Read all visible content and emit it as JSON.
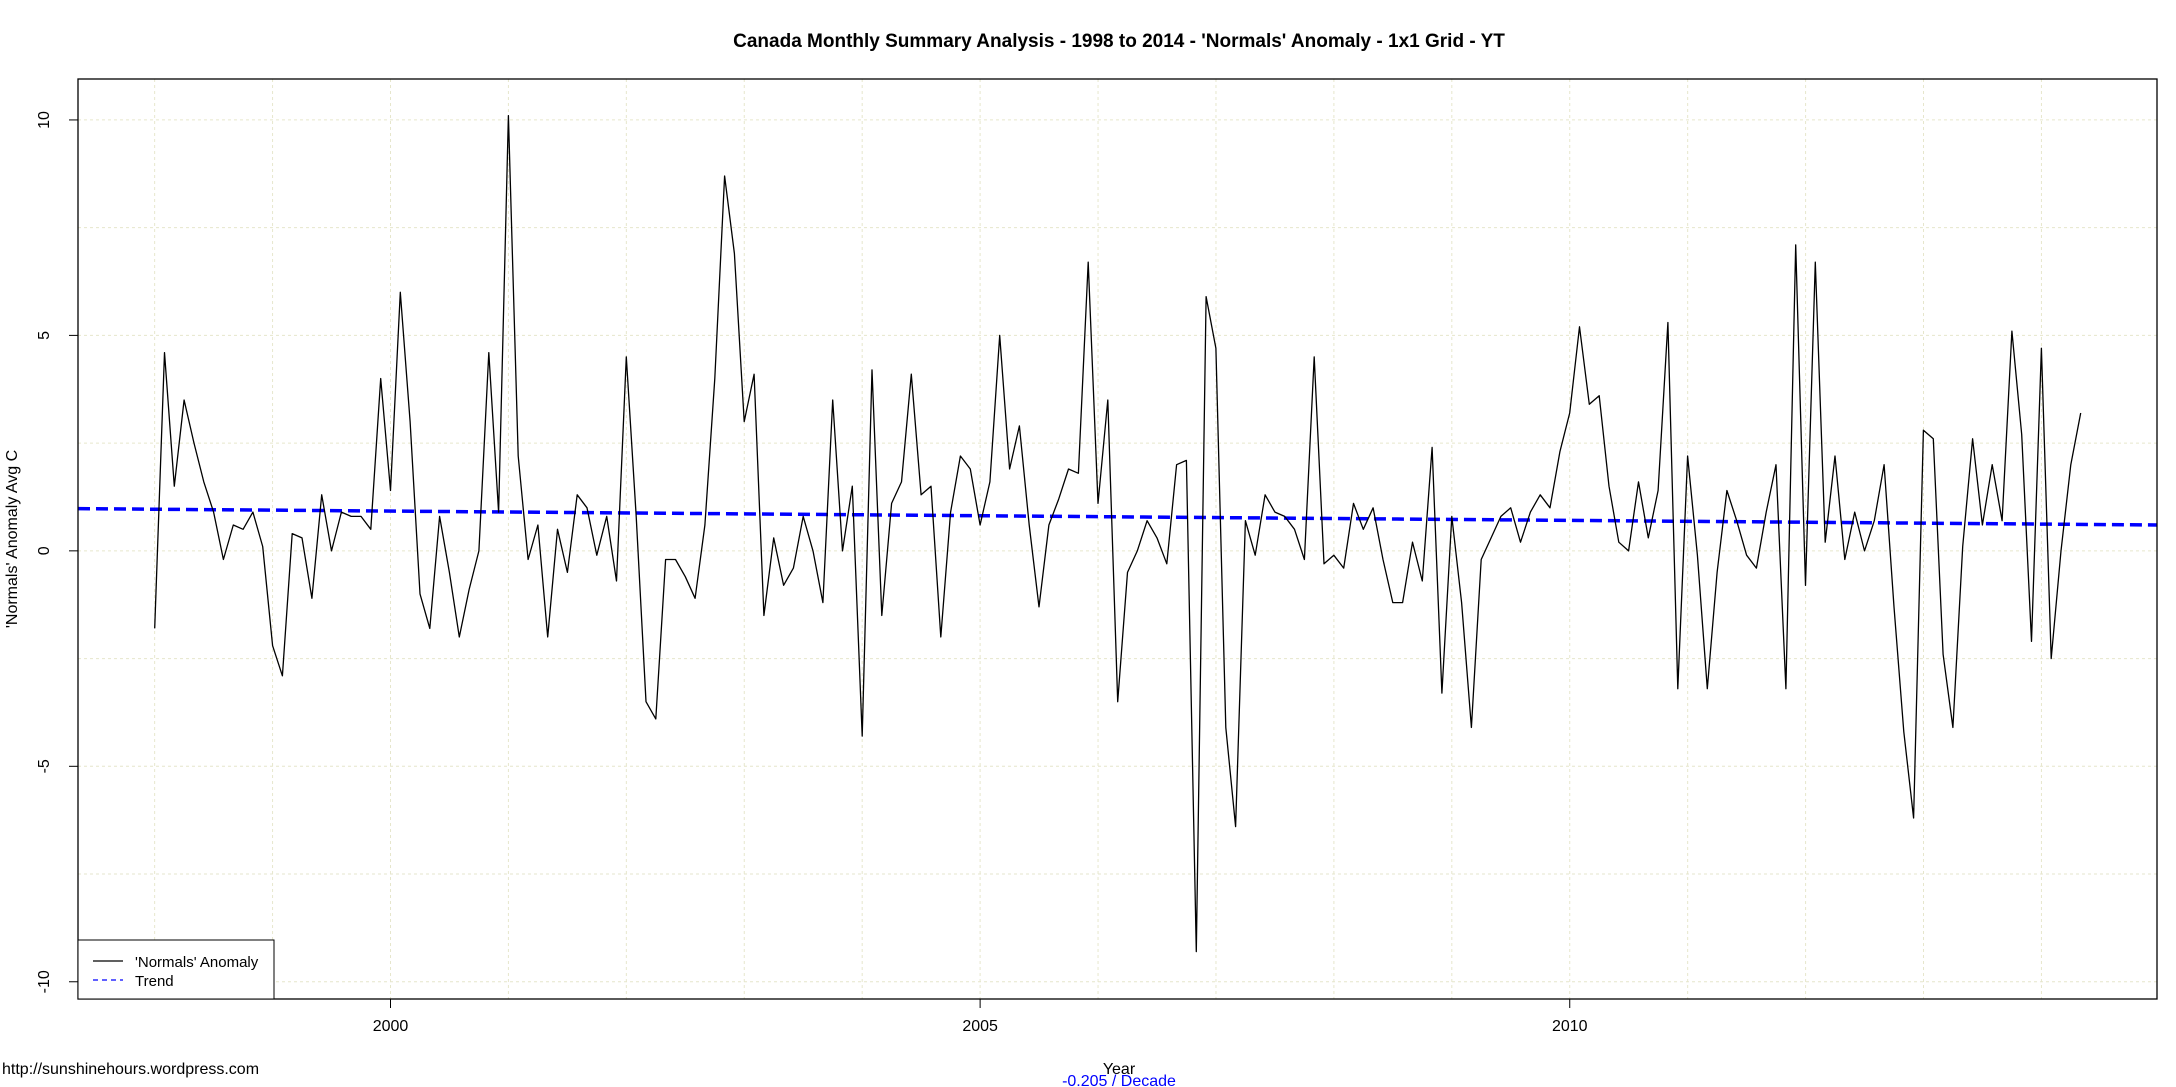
{
  "chart_data": {
    "type": "line",
    "title": "Canada Monthly Summary Analysis - 1998 to 2014 - 'Normals' Anomaly - 1x1 Grid - YT",
    "xlabel": "Year",
    "ylabel": "'Normals' Anomaly Avg C",
    "trend_label": "-0.205  / Decade",
    "source": "http://sunshinehours.wordpress.com",
    "xlim": [
      1997.35,
      2014.98
    ],
    "ylim": [
      -10.4,
      10.95
    ],
    "x_ticks": [
      2000,
      2005,
      2010
    ],
    "y_ticks": [
      10,
      5,
      0,
      -5,
      -10
    ],
    "x_grid": [
      1998,
      1999,
      2000,
      2001,
      2002,
      2003,
      2004,
      2005,
      2006,
      2007,
      2008,
      2009,
      2010,
      2011,
      2012,
      2013,
      2014
    ],
    "y_grid": [
      10,
      7.5,
      5,
      2.5,
      0,
      -2.5,
      -5,
      -7.5,
      -10
    ],
    "grid": true,
    "legend_position": "bottom-left",
    "legend": [
      {
        "label": "'Normals' Anomaly",
        "color": "#000000",
        "style": "solid"
      },
      {
        "label": "Trend",
        "color": "#0000ff",
        "style": "dashed"
      }
    ],
    "series": [
      {
        "name": "'Normals' Anomaly",
        "color": "#000000",
        "x_start": 1998.0,
        "step": 0.08333,
        "values": [
          -1.8,
          4.6,
          1.5,
          3.5,
          2.5,
          1.6,
          0.9,
          -0.2,
          0.6,
          0.5,
          0.9,
          0.1,
          -2.2,
          -2.9,
          0.4,
          0.3,
          -1.1,
          1.3,
          0.0,
          0.9,
          0.8,
          0.8,
          0.5,
          4.0,
          1.4,
          6.0,
          3.0,
          -1.0,
          -1.8,
          0.8,
          -0.5,
          -2.0,
          -0.9,
          0.0,
          4.6,
          0.9,
          10.1,
          2.2,
          -0.2,
          0.6,
          -2.0,
          0.5,
          -0.5,
          1.3,
          1.0,
          -0.1,
          0.8,
          -0.7,
          4.5,
          0.8,
          -3.5,
          -3.9,
          -0.2,
          -0.2,
          -0.6,
          -1.1,
          0.6,
          4.0,
          8.7,
          6.9,
          3.0,
          4.1,
          -1.5,
          0.3,
          -0.8,
          -0.4,
          0.8,
          0.0,
          -1.2,
          3.5,
          0.0,
          1.5,
          -4.3,
          4.2,
          -1.5,
          1.1,
          1.6,
          4.1,
          1.3,
          1.5,
          -2.0,
          0.9,
          2.2,
          1.9,
          0.6,
          1.6,
          5.0,
          1.9,
          2.9,
          0.6,
          -1.3,
          0.6,
          1.2,
          1.9,
          1.8,
          6.7,
          1.1,
          3.5,
          -3.5,
          -0.5,
          0.0,
          0.7,
          0.3,
          -0.3,
          2.0,
          2.1,
          -9.3,
          5.9,
          4.7,
          -4.1,
          -6.4,
          0.7,
          -0.1,
          1.3,
          0.9,
          0.8,
          0.5,
          -0.2,
          4.5,
          -0.3,
          -0.1,
          -0.4,
          1.1,
          0.5,
          1.0,
          -0.2,
          -1.2,
          -1.2,
          0.2,
          -0.7,
          2.4,
          -3.3,
          0.8,
          -1.2,
          -4.1,
          -0.2,
          0.3,
          0.8,
          1.0,
          0.2,
          0.9,
          1.3,
          1.0,
          2.3,
          3.2,
          5.2,
          3.4,
          3.6,
          1.5,
          0.2,
          0.0,
          1.6,
          0.3,
          1.4,
          5.3,
          -3.2,
          2.2,
          -0.1,
          -3.2,
          -0.5,
          1.4,
          0.7,
          -0.1,
          -0.4,
          0.9,
          2.0,
          -3.2,
          7.1,
          -0.8,
          6.7,
          0.2,
          2.2,
          -0.2,
          0.9,
          0.0,
          0.7,
          2.0,
          -1.3,
          -4.2,
          -6.2,
          2.8,
          2.6,
          -2.4,
          -4.1,
          0.1,
          2.6,
          0.6,
          2.0,
          0.7,
          5.1,
          2.7,
          -2.1,
          4.7,
          -2.5,
          0.0,
          2.0,
          3.2
        ]
      },
      {
        "name": "Trend",
        "color": "#0000ff",
        "x": [
          1997.35,
          2014.98
        ],
        "values": [
          0.98,
          0.6
        ]
      }
    ]
  }
}
